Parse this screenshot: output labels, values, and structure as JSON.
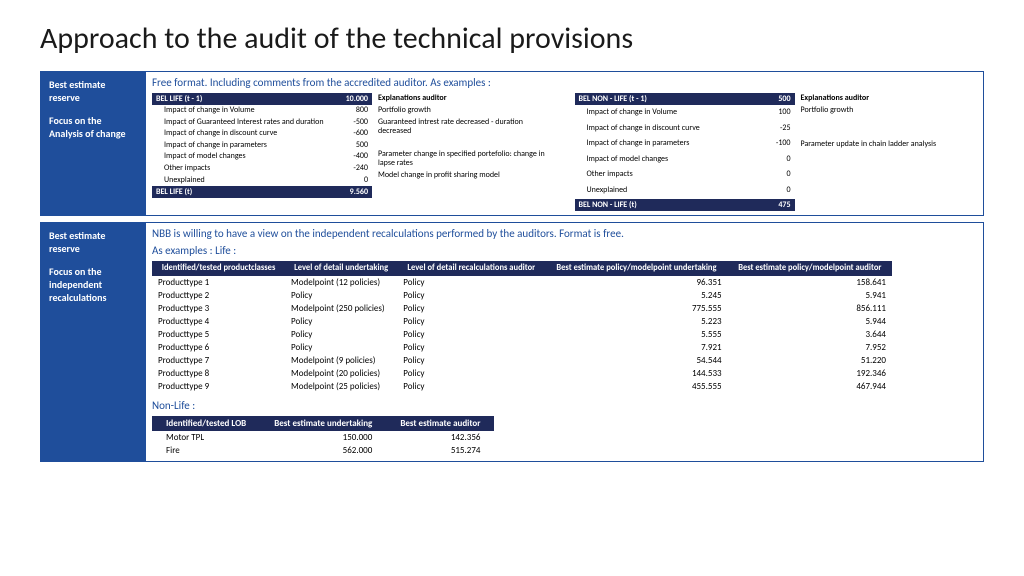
{
  "title": "Approach to the audit of the technical provisions",
  "panel1": {
    "side_t1": "Best estimate reserve",
    "side_t2a": "Focus on the",
    "side_t2b": "Analysis of change",
    "intro": "Free format.  Including comments from the accredited auditor.  As examples :",
    "life": {
      "head_label": "BEL LIFE (t - 1)",
      "head_val": "10.000",
      "rows": [
        {
          "lab": "Impact of change in Volume",
          "val": "800"
        },
        {
          "lab": "Impact of Guaranteed Interest rates and duration",
          "val": "-500"
        },
        {
          "lab": "Impact of change in discount curve",
          "val": "-600"
        },
        {
          "lab": "Impact of change in parameters",
          "val": "500"
        },
        {
          "lab": "Impact of model changes",
          "val": "-400"
        },
        {
          "lab": "Other impacts",
          "val": "-240"
        },
        {
          "lab": "Unexplained",
          "val": "0"
        }
      ],
      "foot_label": "BEL LIFE (t)",
      "foot_val": "9.560",
      "expl_head": "Explanations auditor",
      "expl": [
        "Portfolio growth",
        "Guaranteed intrest rate decreased - duration decreased",
        "",
        "Parameter change in specified portefolio: change in lapse rates",
        "Model change in profit sharing model",
        "",
        ""
      ]
    },
    "nonlife": {
      "head_label": "BEL NON - LIFE (t - 1)",
      "head_val": "500",
      "rows": [
        {
          "lab": "Impact of change in Volume",
          "val": "100"
        },
        {
          "lab": "Impact of change in discount curve",
          "val": "-25"
        },
        {
          "lab": "Impact of change in parameters",
          "val": "-100"
        },
        {
          "lab": "Impact of model changes",
          "val": "0"
        },
        {
          "lab": "Other impacts",
          "val": "0"
        },
        {
          "lab": "Unexplained",
          "val": "0"
        }
      ],
      "foot_label": "BEL NON - LIFE (t)",
      "foot_val": "475",
      "expl_head": "Explanations auditor",
      "expl": [
        "Portfolio growth",
        "",
        "Parameter update in chain ladder analysis",
        "",
        "",
        ""
      ]
    }
  },
  "panel2": {
    "side_t1": "Best estimate reserve",
    "side_t2a": "Focus on the",
    "side_t2b": "independent",
    "side_t2c": "recalculations",
    "intro1": "NBB is willing to have a view on the independent recalculations performed by the auditors.  Format is free.",
    "intro2": "As examples : Life :",
    "life_table": {
      "headers": [
        "Identified/tested productclasses",
        "Level of detail undertaking",
        "Level of detail recalculations auditor",
        "Best estimate policy/modelpoint undertaking",
        "Best estimate policy/modelpoint auditor"
      ],
      "rows": [
        [
          "Producttype 1",
          "Modelpoint (12 policies)",
          "Policy",
          "96.351",
          "158.641"
        ],
        [
          "Producttype 2",
          "Policy",
          "Policy",
          "5.245",
          "5.941"
        ],
        [
          "Producttype 3",
          "Modelpoint (250 policies)",
          "Policy",
          "775.555",
          "856.111"
        ],
        [
          "Producttype 4",
          "Policy",
          "Policy",
          "5.223",
          "5.944"
        ],
        [
          "Producttype 5",
          "Policy",
          "Policy",
          "5.555",
          "3.644"
        ],
        [
          "Producttype 6",
          "Policy",
          "Policy",
          "7.921",
          "7.952"
        ],
        [
          "Producttype 7",
          "Modelpoint (9 policies)",
          "Policy",
          "54.544",
          "51.220"
        ],
        [
          "Producttype 8",
          "Modelpoint (20 policies)",
          "Policy",
          "144.533",
          "192.346"
        ],
        [
          "Producttype 9",
          "Modelpoint (25 policies)",
          "Policy",
          "455.555",
          "467.944"
        ]
      ]
    },
    "nonlife_label": "Non-Life :",
    "nonlife_table": {
      "headers": [
        "Identified/tested LOB",
        "Best estimate undertaking",
        "Best estimate auditor"
      ],
      "rows": [
        [
          "Motor TPL",
          "150.000",
          "142.356"
        ],
        [
          "Fire",
          "562.000",
          "515.274"
        ]
      ]
    }
  }
}
